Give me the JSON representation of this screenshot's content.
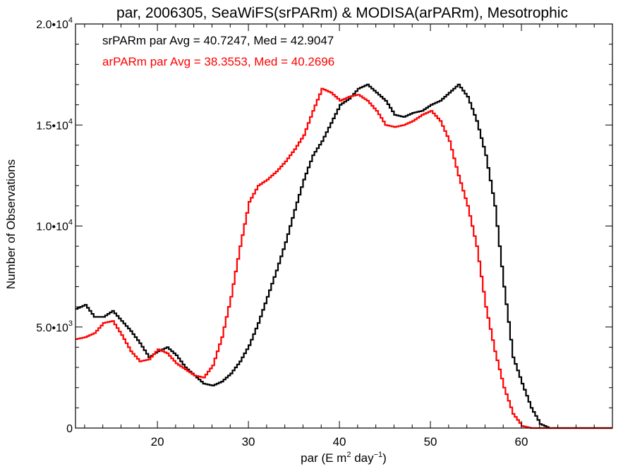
{
  "chart_data": {
    "type": "line",
    "title": "par, 2006305, SeaWiFS(srPARm) & MODISA(arPARm), Mesotrophic",
    "xlabel": "par (E m² day⁻¹)",
    "xlabel_parts": {
      "main": "par (E m",
      "sup1": "2",
      "mid": " day",
      "sup2": "−1",
      "end": ")"
    },
    "ylabel": "Number of Observations",
    "xlim": [
      11,
      70
    ],
    "ylim": [
      0,
      20000
    ],
    "grid": false,
    "x_ticks": [
      {
        "value": 20,
        "label": "20"
      },
      {
        "value": 30,
        "label": "30"
      },
      {
        "value": 40,
        "label": "40"
      },
      {
        "value": 50,
        "label": "50"
      },
      {
        "value": 60,
        "label": "60"
      }
    ],
    "y_ticks": [
      {
        "value": 0,
        "base": "0",
        "exp": ""
      },
      {
        "value": 5000,
        "base": "5.0•10",
        "exp": "3"
      },
      {
        "value": 10000,
        "base": "1.0•10",
        "exp": "4"
      },
      {
        "value": 15000,
        "base": "1.5•10",
        "exp": "4"
      },
      {
        "value": 20000,
        "base": "2.0•10",
        "exp": "4"
      }
    ],
    "annotations": [
      {
        "text": "srPARm par Avg = 40.7247, Med = 42.9047",
        "color": "#000000"
      },
      {
        "text": "arPARm par Avg = 38.3553, Med = 40.2696",
        "color": "#ff0000"
      }
    ],
    "series": [
      {
        "color": "#000000",
        "x": [
          11,
          12,
          13,
          14,
          15,
          16,
          17,
          18,
          19,
          20,
          21,
          22,
          23,
          24,
          25,
          26,
          27,
          28,
          29,
          30,
          31,
          32,
          33,
          34,
          35,
          36,
          37,
          38,
          39,
          40,
          41,
          42,
          43,
          44,
          45,
          46,
          47,
          48,
          49,
          50,
          51,
          52,
          53,
          54,
          55,
          56,
          57,
          58,
          59,
          60,
          61,
          62,
          63,
          64,
          70
        ],
        "y": [
          5900,
          6100,
          5500,
          5500,
          5800,
          5300,
          4800,
          4200,
          3500,
          3800,
          4000,
          3600,
          3000,
          2600,
          2200,
          2100,
          2300,
          2700,
          3300,
          4100,
          5200,
          6500,
          7800,
          9200,
          10800,
          12300,
          13500,
          14200,
          15100,
          16000,
          16300,
          16800,
          17000,
          16600,
          16200,
          15500,
          15400,
          15600,
          15700,
          16000,
          16200,
          16600,
          17000,
          16400,
          15200,
          13500,
          11000,
          7000,
          3500,
          2200,
          1000,
          200,
          0,
          0,
          0
        ]
      },
      {
        "color": "#ff0000",
        "x": [
          11,
          12,
          13,
          14,
          15,
          16,
          17,
          18,
          19,
          20,
          21,
          22,
          23,
          24,
          25,
          26,
          27,
          28,
          29,
          30,
          31,
          32,
          33,
          34,
          35,
          36,
          37,
          38,
          39,
          40,
          41,
          42,
          43,
          44,
          45,
          46,
          47,
          48,
          49,
          50,
          51,
          52,
          53,
          54,
          55,
          56,
          57,
          58,
          59,
          60,
          61,
          62,
          63,
          70
        ],
        "y": [
          4400,
          4500,
          4700,
          5200,
          5300,
          4600,
          3800,
          3300,
          3400,
          3900,
          3700,
          3200,
          2900,
          2600,
          2500,
          3100,
          4500,
          6500,
          9000,
          11200,
          12000,
          12300,
          12700,
          13200,
          13800,
          14500,
          15700,
          16800,
          16600,
          16200,
          16400,
          16500,
          16200,
          15700,
          15000,
          14900,
          15000,
          15200,
          15500,
          15700,
          15200,
          14200,
          12500,
          11000,
          9000,
          6000,
          3800,
          2000,
          700,
          100,
          0,
          0,
          0,
          0
        ]
      }
    ]
  }
}
